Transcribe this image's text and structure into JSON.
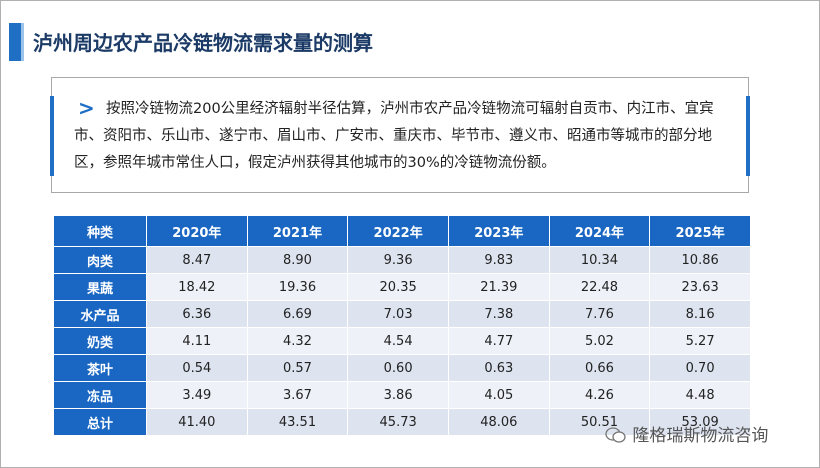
{
  "header": {
    "title": "泸州周边农产品冷链物流需求量的测算"
  },
  "note": {
    "text": "按照冷链物流200公里经济辐射半径估算，泸州市农产品冷链物流可辐射自贡市、内江市、宜宾市、资阳市、乐山市、遂宁市、眉山市、广安市、重庆市、毕节市、遵义市、昭通市等城市的部分地区，参照年城市常住人口，假定泸州获得其他城市的30%的冷链物流份额。"
  },
  "table": {
    "columns": [
      "种类",
      "2020年",
      "2021年",
      "2022年",
      "2023年",
      "2024年",
      "2025年"
    ],
    "rows": [
      [
        "肉类",
        "8.47",
        "8.90",
        "9.36",
        "9.83",
        "10.34",
        "10.86"
      ],
      [
        "果蔬",
        "18.42",
        "19.36",
        "20.35",
        "21.39",
        "22.48",
        "23.63"
      ],
      [
        "水产品",
        "6.36",
        "6.69",
        "7.03",
        "7.38",
        "7.76",
        "8.16"
      ],
      [
        "奶类",
        "4.11",
        "4.32",
        "4.54",
        "4.77",
        "5.02",
        "5.27"
      ],
      [
        "茶叶",
        "0.54",
        "0.57",
        "0.60",
        "0.63",
        "0.66",
        "0.70"
      ],
      [
        "冻品",
        "3.49",
        "3.67",
        "3.86",
        "4.05",
        "4.26",
        "4.48"
      ],
      [
        "总计",
        "41.40",
        "43.51",
        "45.73",
        "48.06",
        "50.51",
        "53.09"
      ]
    ]
  },
  "watermark": {
    "text": "隆格瑞斯物流咨询"
  }
}
